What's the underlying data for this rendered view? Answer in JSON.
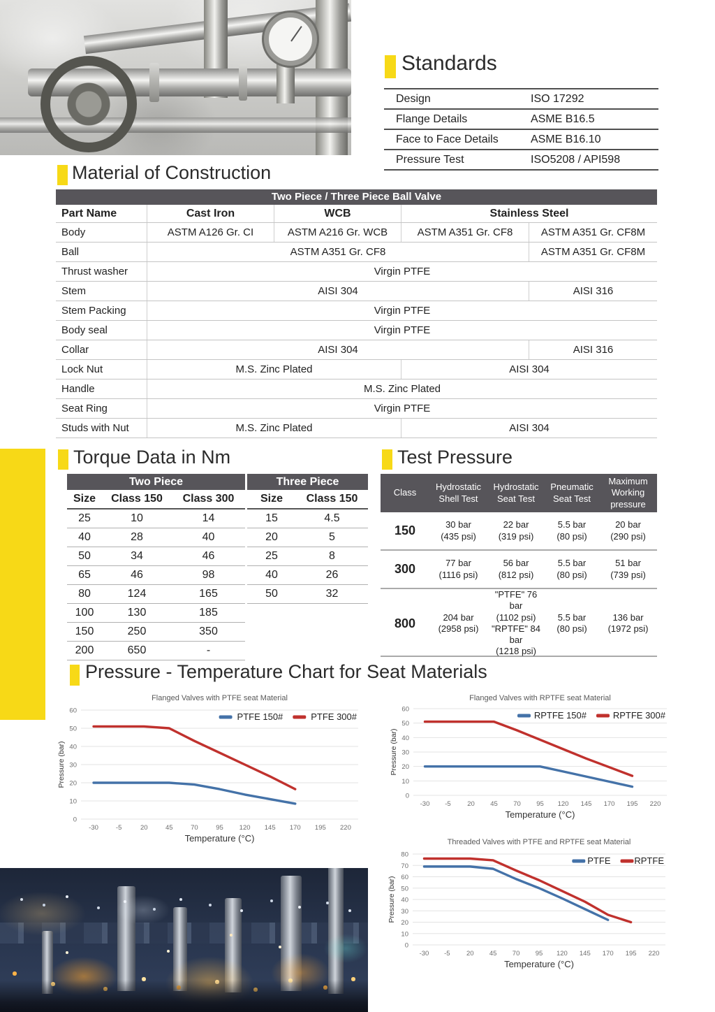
{
  "colors": {
    "accent_yellow": "#F7D917",
    "header_gray": "#57555A",
    "line_blue": "#4472A8",
    "line_red": "#C0312D"
  },
  "standards": {
    "title": "Standards",
    "rows": [
      {
        "label": "Design",
        "value": "ISO 17292"
      },
      {
        "label": "Flange Details",
        "value": "ASME B16.5"
      },
      {
        "label": "Face to Face Details",
        "value": "ASME B16.10"
      },
      {
        "label": "Pressure Test",
        "value": "ISO5208 / API598"
      }
    ]
  },
  "material": {
    "title": "Material of Construction",
    "table_title": "Two Piece / Three Piece Ball Valve",
    "headers": [
      "Part Name",
      "Cast Iron",
      "WCB",
      "Stainless Steel"
    ],
    "rows": [
      {
        "part": "Body",
        "cells": [
          {
            "text": "ASTM A126 Gr. CI",
            "span": 1
          },
          {
            "text": "ASTM A216 Gr. WCB",
            "span": 1
          },
          {
            "text": "ASTM A351 Gr. CF8",
            "span": 1
          },
          {
            "text": "ASTM A351 Gr. CF8M",
            "span": 1
          }
        ]
      },
      {
        "part": "Ball",
        "cells": [
          {
            "text": "ASTM A351 Gr. CF8",
            "span": 3
          },
          {
            "text": "ASTM A351 Gr. CF8M",
            "span": 1
          }
        ]
      },
      {
        "part": "Thrust washer",
        "cells": [
          {
            "text": "Virgin PTFE",
            "span": 4
          }
        ]
      },
      {
        "part": "Stem",
        "cells": [
          {
            "text": "AISI 304",
            "span": 3
          },
          {
            "text": "AISI 316",
            "span": 1
          }
        ]
      },
      {
        "part": "Stem Packing",
        "cells": [
          {
            "text": "Virgin PTFE",
            "span": 4
          }
        ]
      },
      {
        "part": "Body seal",
        "cells": [
          {
            "text": "Virgin PTFE",
            "span": 4
          }
        ]
      },
      {
        "part": "Collar",
        "cells": [
          {
            "text": "AISI 304",
            "span": 3
          },
          {
            "text": "AISI 316",
            "span": 1
          }
        ]
      },
      {
        "part": "Lock Nut",
        "cells": [
          {
            "text": "M.S. Zinc Plated",
            "span": 2
          },
          {
            "text": "AISI 304",
            "span": 2
          }
        ]
      },
      {
        "part": "Handle",
        "cells": [
          {
            "text": "M.S. Zinc Plated",
            "span": 4
          }
        ]
      },
      {
        "part": "Seat Ring",
        "cells": [
          {
            "text": "Virgin PTFE",
            "span": 4
          }
        ]
      },
      {
        "part": "Studs with Nut",
        "cells": [
          {
            "text": "M.S. Zinc Plated",
            "span": 2
          },
          {
            "text": "AISI 304",
            "span": 2
          }
        ]
      }
    ]
  },
  "torque": {
    "title": "Torque Data in Nm",
    "two_piece": {
      "table_title": "Two Piece",
      "headers": [
        "Size",
        "Class 150",
        "Class 300"
      ],
      "rows": [
        [
          "25",
          "10",
          "14"
        ],
        [
          "40",
          "28",
          "40"
        ],
        [
          "50",
          "34",
          "46"
        ],
        [
          "65",
          "46",
          "98"
        ],
        [
          "80",
          "124",
          "165"
        ],
        [
          "100",
          "130",
          "185"
        ],
        [
          "150",
          "250",
          "350"
        ],
        [
          "200",
          "650",
          "-"
        ]
      ]
    },
    "three_piece": {
      "table_title": "Three Piece",
      "headers": [
        "Size",
        "Class 150"
      ],
      "rows": [
        [
          "15",
          "4.5"
        ],
        [
          "20",
          "5"
        ],
        [
          "25",
          "8"
        ],
        [
          "40",
          "26"
        ],
        [
          "50",
          "32"
        ]
      ]
    }
  },
  "test_pressure": {
    "title": "Test Pressure",
    "headers": [
      [
        "Class"
      ],
      [
        "Hydrostatic",
        "Shell Test"
      ],
      [
        "Hydrostatic",
        "Seat Test"
      ],
      [
        "Pneumatic",
        "Seat Test"
      ],
      [
        "Maximum",
        "Working",
        "pressure"
      ]
    ],
    "rows": [
      {
        "class": "150",
        "cells": [
          [
            "30 bar",
            "(435 psi)"
          ],
          [
            "22 bar",
            "(319 psi)"
          ],
          [
            "5.5 bar",
            "(80 psi)"
          ],
          [
            "20 bar",
            "(290 psi)"
          ]
        ]
      },
      {
        "class": "300",
        "cells": [
          [
            "77 bar",
            "(1116 psi)"
          ],
          [
            "56 bar",
            "(812 psi)"
          ],
          [
            "5.5 bar",
            "(80 psi)"
          ],
          [
            "51 bar",
            "(739 psi)"
          ]
        ]
      },
      {
        "class": "800",
        "cells": [
          [
            "204 bar",
            "(2958 psi)"
          ],
          [
            "\"PTFE\" 76 bar",
            "(1102 psi)",
            "\"RPTFE\" 84 bar",
            "(1218 psi)"
          ],
          [
            "5.5 bar",
            "(80 psi)"
          ],
          [
            "136 bar",
            "(1972 psi)"
          ]
        ]
      }
    ]
  },
  "pt_section": {
    "title": "Pressure - Temperature Chart for Seat Materials"
  },
  "chart_data": [
    {
      "type": "line",
      "title": "Flanged Valves with PTFE seat Material",
      "xlabel": "Temperature (°C)",
      "ylabel": "Pressure (bar)",
      "x_ticks": [
        -30,
        -5,
        20,
        45,
        70,
        95,
        120,
        145,
        170,
        195,
        220
      ],
      "ylim": [
        0,
        60
      ],
      "ytick_step": 10,
      "grid": true,
      "legend_position": "top-right",
      "series": [
        {
          "name": "PTFE 150#",
          "color_key": "line_blue",
          "x": [
            -30,
            -5,
            20,
            45,
            70,
            95,
            120,
            145,
            170
          ],
          "y": [
            20,
            20,
            20,
            20,
            19,
            16.5,
            13.5,
            11,
            8.5
          ]
        },
        {
          "name": "PTFE 300#",
          "color_key": "line_red",
          "x": [
            -30,
            -5,
            20,
            45,
            70,
            95,
            120,
            145,
            170
          ],
          "y": [
            51,
            51,
            51,
            50,
            43,
            36.5,
            30,
            23.5,
            16.5
          ]
        }
      ]
    },
    {
      "type": "line",
      "title": "Flanged Valves with RPTFE seat Material",
      "xlabel": "Temperature (°C)",
      "ylabel": "Pressure (bar)",
      "x_ticks": [
        -30,
        -5,
        20,
        45,
        70,
        95,
        120,
        145,
        170,
        195,
        220
      ],
      "ylim": [
        0,
        60
      ],
      "ytick_step": 10,
      "grid": true,
      "legend_position": "top-right",
      "series": [
        {
          "name": "RPTFE 150#",
          "color_key": "line_blue",
          "x": [
            -30,
            -5,
            20,
            45,
            70,
            95,
            120,
            145,
            170,
            195
          ],
          "y": [
            20,
            20,
            20,
            20,
            20,
            20,
            16.5,
            13,
            9.5,
            6
          ]
        },
        {
          "name": "RPTFE 300#",
          "color_key": "line_red",
          "x": [
            -30,
            -5,
            20,
            45,
            70,
            95,
            120,
            145,
            170,
            195
          ],
          "y": [
            51,
            51,
            51,
            51,
            45,
            38.5,
            32,
            25.5,
            19.5,
            13.5
          ]
        }
      ]
    },
    {
      "type": "line",
      "title": "Threaded Valves with PTFE and RPTFE seat Material",
      "xlabel": "Temperature (°C)",
      "ylabel": "Pressure (bar)",
      "x_ticks": [
        -30,
        -5,
        20,
        45,
        70,
        95,
        120,
        145,
        170,
        195,
        220
      ],
      "ylim": [
        0,
        80
      ],
      "ytick_step": 10,
      "grid": true,
      "legend_position": "top-right",
      "series": [
        {
          "name": "PTFE",
          "color_key": "line_blue",
          "x": [
            -30,
            -5,
            20,
            45,
            70,
            95,
            120,
            145,
            170
          ],
          "y": [
            69,
            69,
            69,
            67,
            58,
            50,
            41,
            31.5,
            22
          ]
        },
        {
          "name": "RPTFE",
          "color_key": "line_red",
          "x": [
            -30,
            -5,
            20,
            45,
            70,
            95,
            120,
            145,
            170,
            195
          ],
          "y": [
            76,
            76,
            76,
            74.5,
            65.5,
            57,
            47.5,
            38,
            26.5,
            20
          ]
        }
      ]
    }
  ]
}
